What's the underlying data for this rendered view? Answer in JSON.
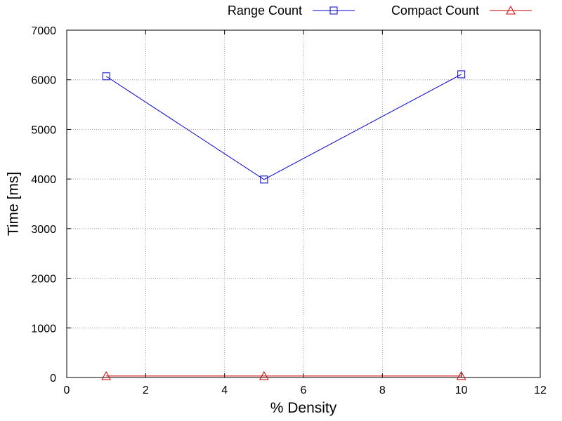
{
  "chart_data": {
    "type": "line",
    "title": "",
    "xlabel": "% Density",
    "ylabel": "Time [ms]",
    "xlim": [
      0,
      12
    ],
    "ylim": [
      0,
      7000
    ],
    "xticks": [
      "0",
      "2",
      "4",
      "6",
      "8",
      "10",
      "12"
    ],
    "yticks": [
      "0",
      "1000",
      "2000",
      "3000",
      "4000",
      "5000",
      "6000",
      "7000"
    ],
    "grid": true,
    "legend_position": "top-right",
    "series": [
      {
        "name": "Range Count",
        "color": "#0000cc",
        "marker": "square",
        "x": [
          1,
          5,
          10
        ],
        "y": [
          6070,
          3990,
          6110
        ]
      },
      {
        "name": "Compact Count",
        "color": "#cc0000",
        "marker": "triangle",
        "x": [
          1,
          5,
          10
        ],
        "y": [
          30,
          30,
          30
        ]
      }
    ]
  }
}
